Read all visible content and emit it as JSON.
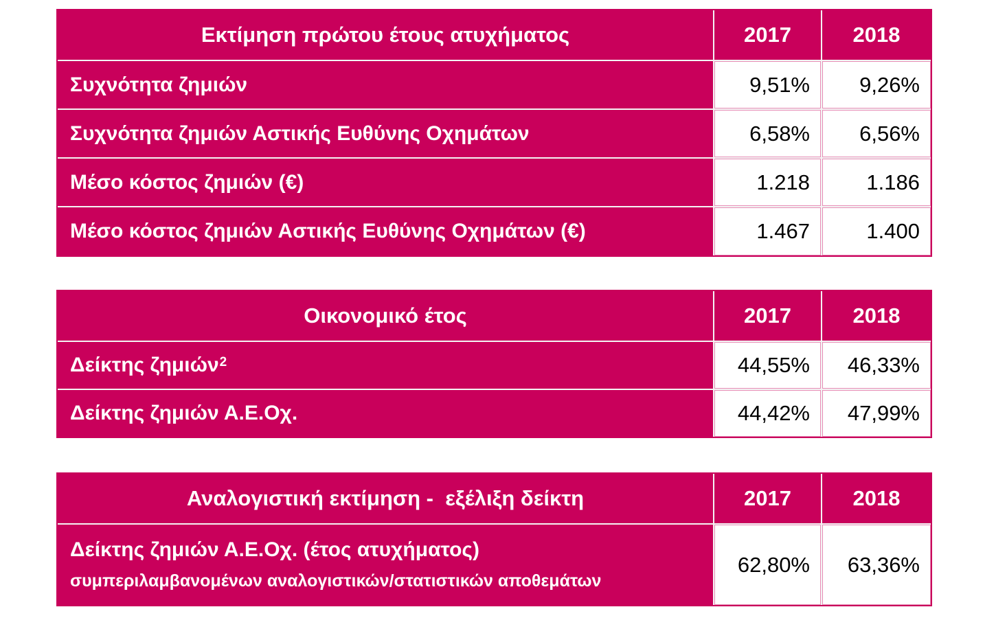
{
  "colors": {
    "accent": "#C9005B",
    "cell_bg": "#FFFFFF",
    "label_text": "#FFFFFF",
    "value_text": "#000000"
  },
  "chart_data": [
    {
      "type": "table",
      "columns": [
        "Εκτίμηση πρώτου έτους ατυχήματος",
        "2017",
        "2018"
      ],
      "rows": [
        {
          "label": "Συχνότητα ζημιών",
          "values": [
            "9,51%",
            "9,26%"
          ]
        },
        {
          "label": "Συχνότητα ζημιών Αστικής Ευθύνης Οχημάτων",
          "values": [
            "6,58%",
            "6,56%"
          ]
        },
        {
          "label": "Μέσο κόστος ζημιών (€)",
          "values": [
            "1.218",
            "1.186"
          ]
        },
        {
          "label": "Μέσο κόστος ζημιών Αστικής Ευθύνης Οχημάτων (€)",
          "values": [
            "1.467",
            "1.400"
          ]
        }
      ]
    },
    {
      "type": "table",
      "columns": [
        "Οικονομικό έτος",
        "2017",
        "2018"
      ],
      "rows": [
        {
          "label": "Δείκτης ζημιών",
          "footnote": "2",
          "values": [
            "44,55%",
            "46,33%"
          ]
        },
        {
          "label": "Δείκτης ζημιών Α.Ε.Οχ.",
          "values": [
            "44,42%",
            "47,99%"
          ]
        }
      ]
    },
    {
      "type": "table",
      "columns": [
        "Αναλογιστική εκτίμηση -  εξέλιξη δείκτη",
        "2017",
        "2018"
      ],
      "rows": [
        {
          "label": "Δείκτης ζημιών Α.Ε.Οχ. (έτος ατυχήματος)",
          "sublabel": "συμπεριλαμβανομένων αναλογιστικών/στατιστικών αποθεμάτων",
          "values": [
            "62,80%",
            "63,36%"
          ]
        }
      ]
    }
  ]
}
